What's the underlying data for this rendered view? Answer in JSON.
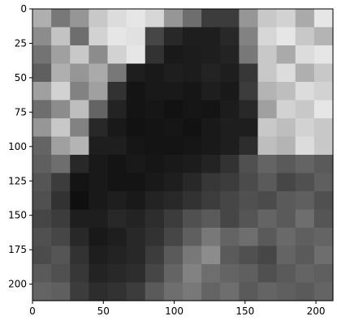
{
  "chart_data": {
    "type": "heatmap",
    "title": "",
    "xlabel": "",
    "ylabel": "",
    "xlim": [
      0,
      212
    ],
    "ylim": [
      212,
      0
    ],
    "colormap": "gray",
    "grid": false,
    "legend": "none",
    "x_ticks": [
      {
        "value": 0,
        "label": "0"
      },
      {
        "value": 50,
        "label": "50"
      },
      {
        "value": 100,
        "label": "100"
      },
      {
        "value": 150,
        "label": "150"
      },
      {
        "value": 200,
        "label": "200"
      }
    ],
    "y_ticks": [
      {
        "value": 0,
        "label": "0"
      },
      {
        "value": 25,
        "label": "25"
      },
      {
        "value": 50,
        "label": "50"
      },
      {
        "value": 75,
        "label": "75"
      },
      {
        "value": 100,
        "label": "100"
      },
      {
        "value": 125,
        "label": "125"
      },
      {
        "value": 150,
        "label": "150"
      },
      {
        "value": 175,
        "label": "175"
      },
      {
        "value": 200,
        "label": "200"
      }
    ],
    "grid_cols": 16,
    "grid_rows": 16,
    "intensity_grid": [
      [
        175,
        120,
        150,
        200,
        220,
        230,
        215,
        150,
        110,
        60,
        60,
        150,
        200,
        210,
        170,
        230
      ],
      [
        140,
        195,
        110,
        210,
        230,
        225,
        70,
        40,
        30,
        30,
        40,
        130,
        215,
        230,
        200,
        180
      ],
      [
        115,
        160,
        200,
        140,
        210,
        230,
        50,
        25,
        28,
        30,
        35,
        120,
        200,
        170,
        220,
        230
      ],
      [
        95,
        175,
        150,
        170,
        120,
        30,
        25,
        30,
        28,
        35,
        30,
        55,
        200,
        220,
        175,
        200
      ],
      [
        160,
        210,
        130,
        160,
        50,
        20,
        25,
        25,
        22,
        30,
        25,
        60,
        180,
        190,
        220,
        210
      ],
      [
        110,
        140,
        190,
        100,
        35,
        20,
        22,
        18,
        22,
        20,
        28,
        40,
        160,
        210,
        200,
        230
      ],
      [
        150,
        200,
        130,
        40,
        25,
        18,
        20,
        22,
        18,
        25,
        30,
        30,
        200,
        190,
        210,
        200
      ],
      [
        100,
        160,
        180,
        30,
        30,
        22,
        20,
        20,
        22,
        25,
        30,
        45,
        190,
        180,
        220,
        200
      ],
      [
        95,
        110,
        40,
        25,
        20,
        25,
        22,
        25,
        28,
        35,
        50,
        80,
        100,
        90,
        100,
        90
      ],
      [
        85,
        60,
        20,
        25,
        20,
        20,
        25,
        30,
        40,
        55,
        60,
        75,
        90,
        70,
        80,
        95
      ],
      [
        80,
        50,
        15,
        25,
        30,
        25,
        35,
        40,
        50,
        60,
        70,
        80,
        75,
        90,
        95,
        80
      ],
      [
        70,
        60,
        30,
        30,
        40,
        35,
        45,
        60,
        80,
        90,
        70,
        85,
        100,
        90,
        110,
        85
      ],
      [
        80,
        70,
        40,
        25,
        30,
        40,
        50,
        70,
        95,
        120,
        100,
        110,
        90,
        105,
        95,
        100
      ],
      [
        75,
        85,
        50,
        30,
        35,
        40,
        60,
        90,
        120,
        140,
        90,
        80,
        70,
        100,
        90,
        110
      ],
      [
        90,
        80,
        55,
        35,
        40,
        45,
        70,
        100,
        130,
        110,
        100,
        95,
        80,
        90,
        100,
        95
      ],
      [
        100,
        95,
        60,
        45,
        50,
        60,
        90,
        110,
        120,
        100,
        110,
        90,
        100,
        95,
        90,
        100
      ]
    ]
  }
}
